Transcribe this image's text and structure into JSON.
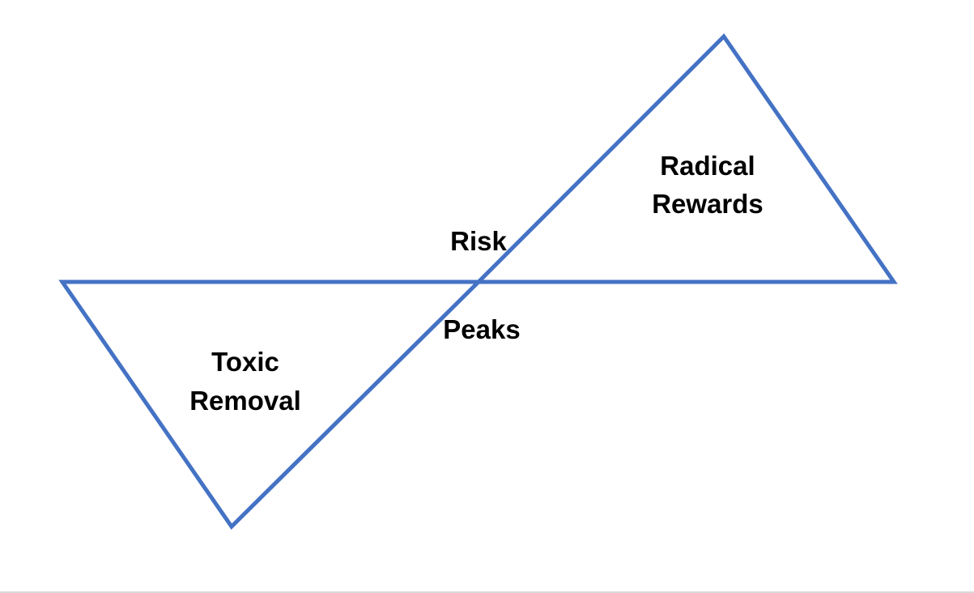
{
  "diagram": {
    "colors": {
      "stroke": "#4472c4",
      "text": "#000000"
    },
    "labels": {
      "upper_triangle_line1": "Radical",
      "upper_triangle_line2": "Rewards",
      "lower_triangle_line1": "Toxic",
      "lower_triangle_line2": "Removal",
      "center_top": "Risk",
      "center_bottom": "Peaks"
    }
  }
}
